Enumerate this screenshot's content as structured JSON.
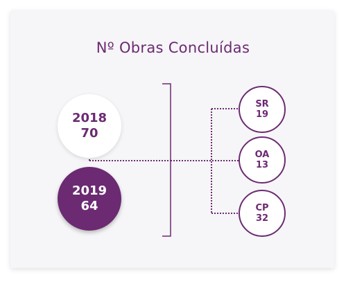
{
  "title": "Nº Obras Concluídas",
  "years": [
    {
      "year": "2018",
      "value": "70"
    },
    {
      "year": "2019",
      "value": "64"
    }
  ],
  "categories": [
    {
      "code": "SR",
      "value": "19"
    },
    {
      "code": "OA",
      "value": "13"
    },
    {
      "code": "CP",
      "value": "32"
    }
  ],
  "colors": {
    "accent": "#6b2a72",
    "card_bg": "#f6f5f7",
    "white": "#ffffff"
  }
}
